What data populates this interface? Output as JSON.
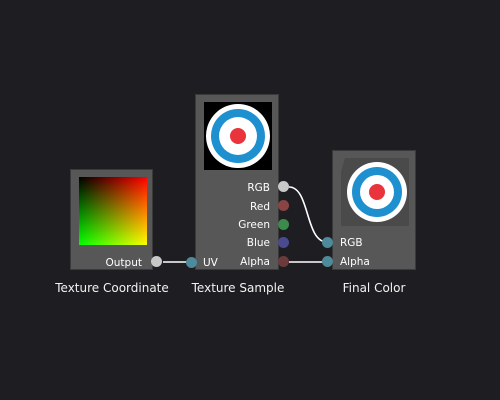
{
  "nodes": {
    "texture_coordinate": {
      "caption": "Texture Coordinate",
      "output_label": "Output"
    },
    "texture_sample": {
      "caption": "Texture Sample",
      "input_label": "UV",
      "outputs": [
        "RGB",
        "Red",
        "Green",
        "Blue",
        "Alpha"
      ]
    },
    "final_color": {
      "caption": "Final Color",
      "inputs": [
        "RGB",
        "Alpha"
      ]
    }
  },
  "colors": {
    "background": "#1e1e22",
    "node_body": "#575757",
    "port_white": "#c8c8c8",
    "port_red": "#8a4444",
    "port_green": "#3d8a4d",
    "port_blue": "#4a4a8e",
    "port_alpha": "#6b3a3a",
    "port_teal": "#4d8a9a",
    "wire": "#ffffff",
    "target_blue": "#1e8fcf",
    "target_red": "#e8343a"
  }
}
